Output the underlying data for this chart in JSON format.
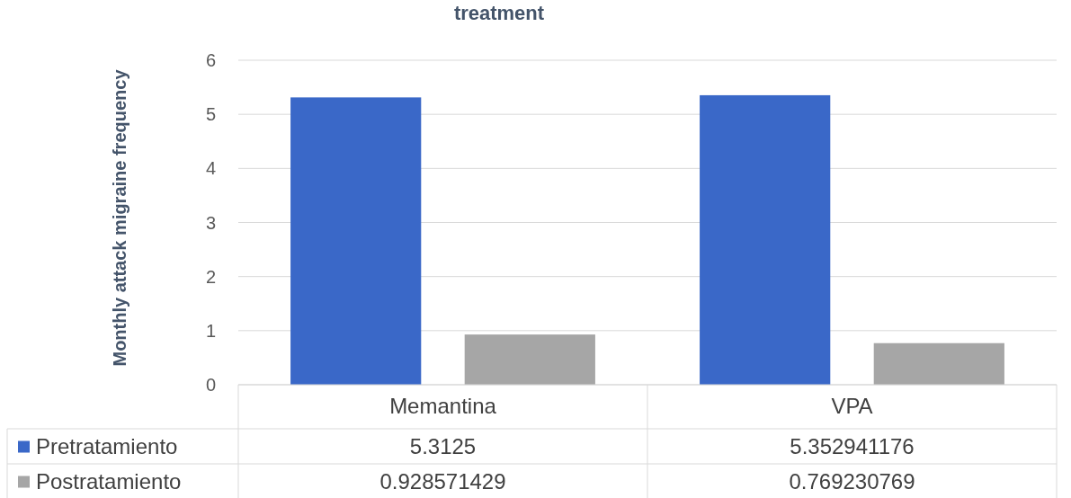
{
  "chart_data": {
    "type": "bar",
    "title": "treatment",
    "ylabel": "Monthly attack migraine frequency",
    "categories": [
      "Memantina",
      "VPA"
    ],
    "series": [
      {
        "name": "Pretratamiento",
        "color": "#3a68c8",
        "values": [
          5.3125,
          5.352941176
        ]
      },
      {
        "name": "Postratamiento",
        "color": "#a6a6a6",
        "values": [
          0.928571429,
          0.769230769
        ]
      }
    ],
    "ylim": [
      0,
      6
    ],
    "yticks": [
      0,
      1,
      2,
      3,
      4,
      5,
      6
    ],
    "grid": "y",
    "legend": "bottom",
    "data_labels": true
  }
}
